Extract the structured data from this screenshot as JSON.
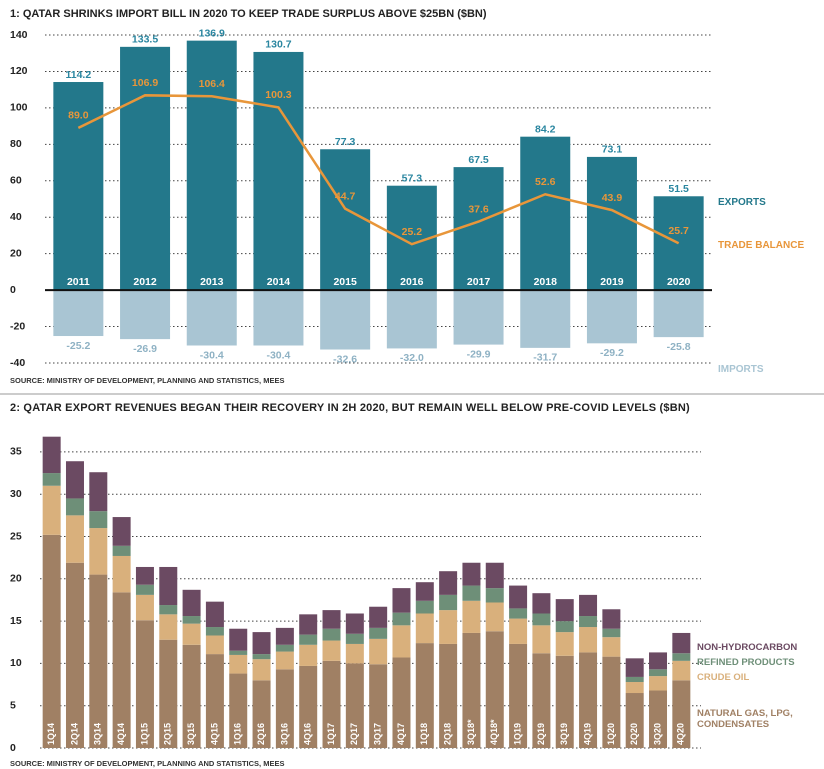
{
  "chart_data": [
    {
      "type": "bar",
      "title": "1: QATAR SHRINKS IMPORT BILL IN 2020 TO KEEP TRADE SURPLUS ABOVE $25BN ($BN)",
      "categories": [
        "2011",
        "2012",
        "2013",
        "2014",
        "2015",
        "2016",
        "2017",
        "2018",
        "2019",
        "2020"
      ],
      "series": [
        {
          "name": "EXPORTS",
          "type": "bar",
          "color": "#23788b",
          "values": [
            114.2,
            133.5,
            136.9,
            130.7,
            77.3,
            57.3,
            67.5,
            84.2,
            73.1,
            51.5
          ]
        },
        {
          "name": "TRADE BALANCE",
          "type": "line",
          "color": "#e8963a",
          "values": [
            89.0,
            106.9,
            106.4,
            100.3,
            44.7,
            25.2,
            37.6,
            52.6,
            43.9,
            25.7
          ],
          "value_labels": [
            "89.0",
            "106.9",
            "106.4",
            "100.3",
            "44.7",
            "25.2",
            "37.6",
            "52.6",
            "43.9",
            "25.7"
          ]
        },
        {
          "name": "IMPORTS",
          "type": "bar",
          "color": "#a9c5d3",
          "values": [
            -25.2,
            -26.9,
            -30.4,
            -30.4,
            -32.6,
            -32.0,
            -29.9,
            -31.7,
            -29.2,
            -25.8
          ],
          "value_labels": [
            "-25.2",
            "-26.9",
            "-30.4",
            "-30.4",
            "-32.6",
            "-32.0",
            "-29.9",
            "-31.7",
            "-29.2",
            "-25.8"
          ]
        }
      ],
      "ylim": [
        -40,
        140
      ],
      "yticks": [
        -40,
        -20,
        0,
        20,
        40,
        60,
        80,
        100,
        120,
        140
      ],
      "grid": true,
      "source": "SOURCE: MINISTRY OF DEVELOPMENT, PLANNING AND STATISTICS, MEES"
    },
    {
      "type": "stacked_bar",
      "title": "2: QATAR EXPORT REVENUES BEGAN THEIR RECOVERY IN 2H 2020, BUT REMAIN WELL BELOW PRE-COVID LEVELS ($BN)",
      "categories": [
        "1Q14",
        "2Q14",
        "3Q14",
        "4Q14",
        "1Q15",
        "2Q15",
        "3Q15",
        "4Q15",
        "1Q16",
        "2Q16",
        "3Q16",
        "4Q16",
        "1Q17",
        "2Q17",
        "3Q17",
        "4Q17",
        "1Q18",
        "2Q18",
        "3Q18*",
        "4Q18*",
        "1Q19",
        "2Q19",
        "3Q19",
        "4Q19",
        "1Q20",
        "2Q20",
        "3Q20",
        "4Q20"
      ],
      "series": [
        {
          "name": "NATURAL GAS, LPG, CONDENSATES",
          "color": "#a08064",
          "values": [
            25.2,
            21.9,
            20.5,
            18.4,
            15.1,
            12.8,
            12.2,
            11.1,
            8.8,
            8.0,
            9.3,
            9.7,
            10.3,
            10.0,
            9.9,
            10.7,
            12.4,
            12.3,
            13.6,
            13.8,
            12.3,
            11.2,
            10.9,
            11.3,
            10.8,
            6.5,
            6.8,
            8.0
          ]
        },
        {
          "name": "CRUDE OIL",
          "color": "#d9b07c",
          "values": [
            5.8,
            5.6,
            5.5,
            4.3,
            3.0,
            3.0,
            2.5,
            2.2,
            2.2,
            2.5,
            2.1,
            2.5,
            2.4,
            2.3,
            3.0,
            3.8,
            3.5,
            4.0,
            3.8,
            3.4,
            3.0,
            3.3,
            2.8,
            3.0,
            2.3,
            1.3,
            1.7,
            2.3
          ]
        },
        {
          "name": "REFINED PRODUCTS",
          "color": "#6e8f78",
          "values": [
            1.5,
            2.0,
            2.0,
            1.2,
            1.2,
            1.1,
            0.9,
            1.0,
            0.5,
            0.6,
            0.8,
            1.2,
            1.4,
            1.2,
            1.3,
            1.5,
            1.5,
            1.8,
            1.8,
            1.7,
            1.2,
            1.4,
            1.3,
            1.3,
            1.0,
            0.6,
            0.8,
            0.9
          ]
        },
        {
          "name": "NON-HYDROCARBON",
          "color": "#6b4a62",
          "values": [
            4.3,
            4.4,
            4.6,
            3.4,
            2.1,
            4.5,
            3.1,
            3.0,
            2.6,
            2.6,
            2.0,
            2.4,
            2.2,
            2.4,
            2.5,
            2.9,
            2.2,
            2.8,
            2.7,
            3.0,
            2.7,
            2.4,
            2.6,
            2.5,
            2.3,
            2.2,
            2.0,
            2.4
          ]
        }
      ],
      "ylim": [
        0,
        37
      ],
      "yticks": [
        0,
        5,
        10,
        15,
        20,
        25,
        30,
        35
      ],
      "grid": true,
      "source": "SOURCE: MINISTRY OF DEVELOPMENT, PLANNING AND STATISTICS, MEES"
    }
  ]
}
